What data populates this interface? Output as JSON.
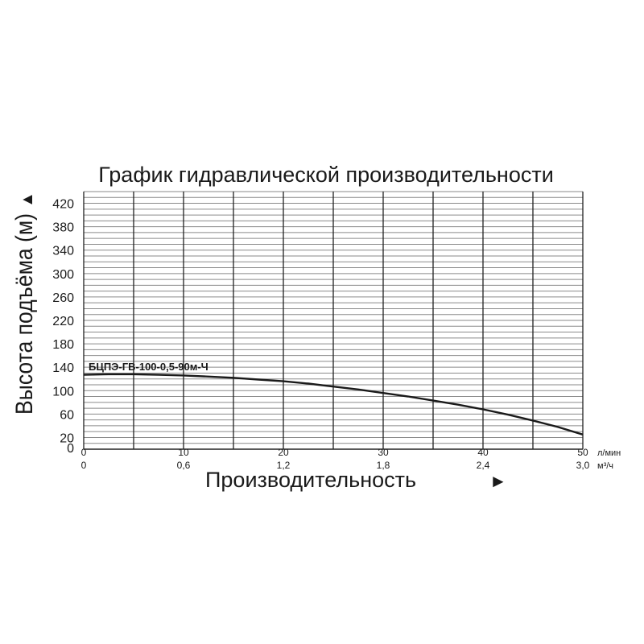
{
  "chart_data": {
    "type": "line",
    "title": "График гидравлической производительности",
    "ylabel": "Высота подъёма (м)",
    "ylabel_arrow": "▲",
    "xlabel": "Производительность",
    "xlabel_arrow": "►",
    "ylim": [
      0,
      440
    ],
    "xlim": [
      0,
      50
    ],
    "y_ticks": [
      "0",
      "20",
      "60",
      "100",
      "140",
      "180",
      "220",
      "260",
      "300",
      "340",
      "380",
      "420"
    ],
    "y_tick_values": [
      0,
      20,
      60,
      100,
      140,
      180,
      220,
      260,
      300,
      340,
      380,
      420
    ],
    "x_ticks_primary": [
      "0",
      "10",
      "20",
      "30",
      "40",
      "50"
    ],
    "x_tick_primary_values": [
      0,
      10,
      20,
      30,
      40,
      50
    ],
    "x_primary_unit": "л/мин",
    "x_ticks_secondary": [
      "0",
      "0,6",
      "1,2",
      "1,8",
      "2,4",
      "3,0"
    ],
    "x_secondary_unit": "м³/ч",
    "grid": true,
    "series": [
      {
        "name": "БЦПЭ-ГВ-100-0,5-90м-Ч",
        "x": [
          0,
          2.5,
          5,
          7.5,
          10,
          12.5,
          15,
          17.5,
          20,
          22.5,
          25,
          27.5,
          30,
          32.5,
          35,
          37.5,
          40,
          42.5,
          45,
          47.5,
          50
        ],
        "y": [
          127,
          128,
          128,
          127,
          126,
          124,
          122,
          119,
          116,
          112,
          107,
          102,
          96,
          90,
          83,
          76,
          68,
          59,
          49,
          38,
          25
        ],
        "color": "#1a1a1a"
      }
    ]
  }
}
